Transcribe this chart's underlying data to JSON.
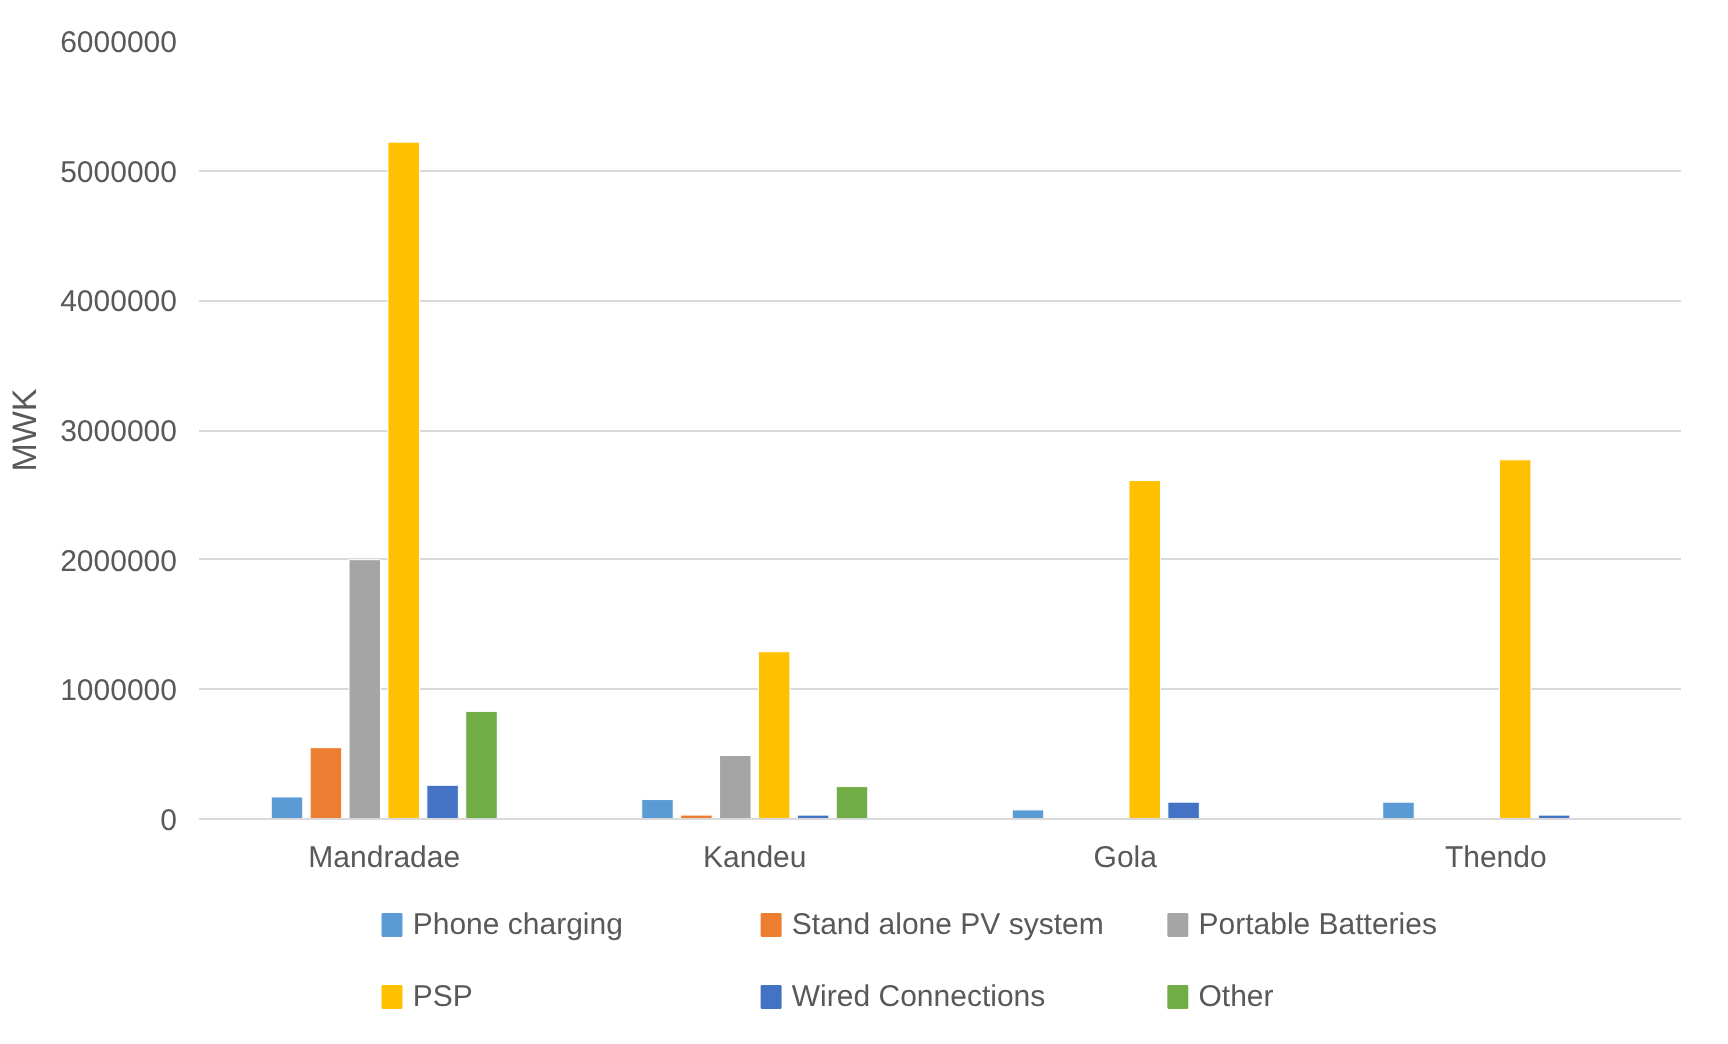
{
  "chart_data": {
    "type": "bar",
    "ylabel": "MWK",
    "categories": [
      "Mandradae",
      "Kandeu",
      "Gola",
      "Thendo"
    ],
    "series": [
      {
        "name": "Phone charging",
        "color": "#5b9bd5",
        "values": [
          170000,
          150000,
          70000,
          130000
        ]
      },
      {
        "name": "Stand alone PV system",
        "color": "#ed7d31",
        "values": [
          550000,
          30000,
          null,
          null
        ]
      },
      {
        "name": "Portable Batteries",
        "color": "#a5a5a5",
        "values": [
          2000000,
          490000,
          null,
          null
        ]
      },
      {
        "name": "PSP",
        "color": "#ffc000",
        "values": [
          5220000,
          1290000,
          2610000,
          2770000
        ]
      },
      {
        "name": "Wired Connections",
        "color": "#4472c4",
        "values": [
          260000,
          30000,
          130000,
          30000
        ]
      },
      {
        "name": "Other",
        "color": "#70ad47",
        "values": [
          830000,
          250000,
          null,
          null
        ]
      }
    ],
    "ylim": [
      0,
      6000000
    ],
    "yticks": [
      0,
      1000000,
      2000000,
      3000000,
      4000000,
      5000000,
      6000000
    ],
    "grid": "y",
    "legend": "bottom"
  }
}
